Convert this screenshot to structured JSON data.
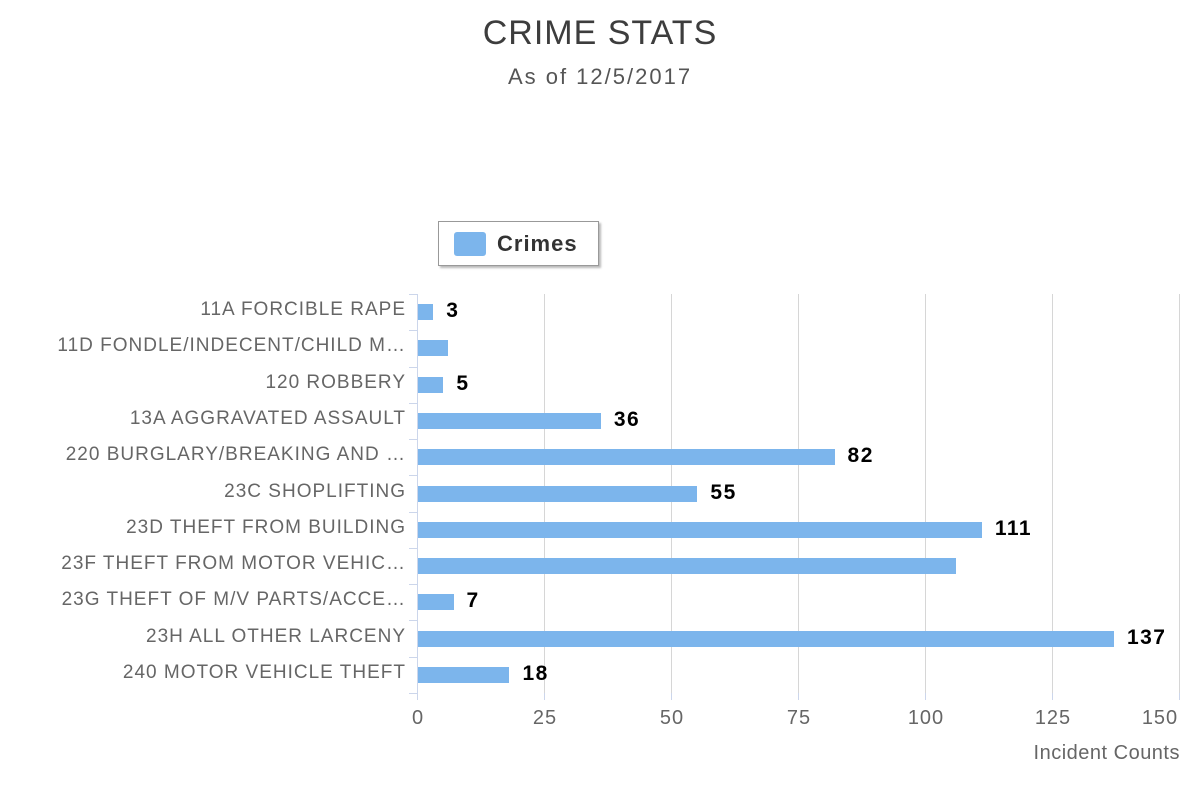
{
  "page": {
    "background": "#ffffff"
  },
  "title": "CRIME STATS",
  "subtitle": "As of 12/5/2017",
  "legend": {
    "label": "Crimes"
  },
  "chart_data": {
    "type": "bar",
    "orientation": "horizontal",
    "title": "CRIME STATS",
    "subtitle": "As of 12/5/2017",
    "xlabel": "Incident Counts",
    "legend_entries": [
      "Crimes"
    ],
    "legend_position": "top-center",
    "grid": true,
    "xlim": [
      0,
      150
    ],
    "xticks": [
      0,
      25,
      50,
      75,
      100,
      125,
      150
    ],
    "categories": [
      "11A FORCIBLE RAPE",
      "11D FONDLE/INDECENT/CHILD M…",
      "120 ROBBERY",
      "13A AGGRAVATED ASSAULT",
      "220 BURGLARY/BREAKING AND …",
      "23C SHOPLIFTING",
      "23D THEFT FROM BUILDING",
      "23F THEFT FROM MOTOR VEHIC…",
      "23G THEFT OF M/V PARTS/ACCE…",
      "23H ALL OTHER LARCENY",
      "240 MOTOR VEHICLE THEFT"
    ],
    "series": [
      {
        "name": "Crimes",
        "values": [
          3,
          6,
          5,
          36,
          82,
          55,
          111,
          106,
          7,
          137,
          18
        ]
      }
    ],
    "data_label_visible": [
      true,
      false,
      true,
      true,
      true,
      true,
      true,
      false,
      true,
      true,
      true
    ],
    "colors": {
      "bar": "#7cb5ec",
      "axis_line": "#ccd6eb",
      "grid_line": "#d6d6d6",
      "title_text": "#3d3d3d",
      "subtitle_text": "#555555",
      "label_text": "#666666",
      "data_label_text": "#000000",
      "legend_border": "#999999",
      "legend_text": "#333333"
    }
  }
}
